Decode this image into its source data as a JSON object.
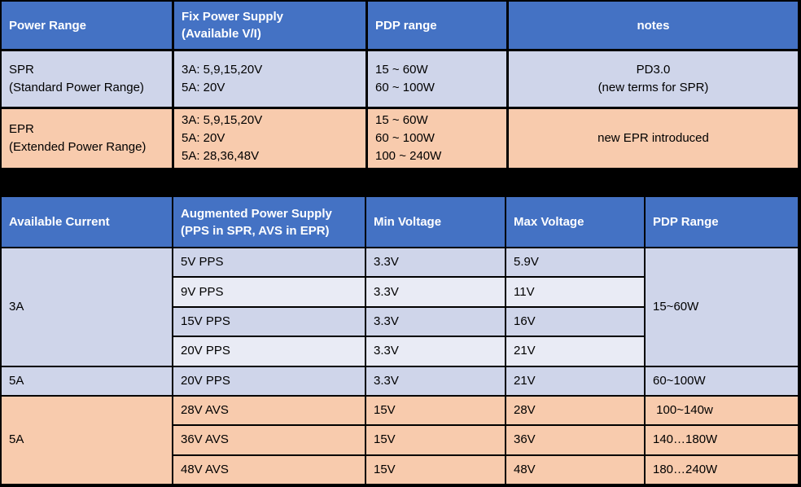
{
  "colors": {
    "page_background": "#000000",
    "header_bg": "#4472C4",
    "header_text": "#FFFFFF",
    "row_lavender": "#CFD5EA",
    "row_lavender_light": "#E9EBF5",
    "row_peach": "#F8CBAD",
    "grid_line": "#FFFFFF",
    "body_text": "#000000"
  },
  "power_range_table": {
    "headers": {
      "power_range": "Power Range",
      "fix_power_supply": "Fix Power Supply\n(Available V/I)",
      "pdp_range": "PDP range",
      "notes": "notes"
    },
    "spr_row": {
      "power_range": "SPR\n(Standard Power Range)",
      "fix_power_supply": "3A: 5,9,15,20V\n5A: 20V",
      "pdp_range": "15 ~ 60W\n60 ~ 100W",
      "notes": "PD3.0\n(new terms for SPR)"
    },
    "epr_row": {
      "power_range": "EPR\n(Extended Power Range)",
      "fix_power_supply": "3A: 5,9,15,20V\n5A: 20V\n5A: 28,36,48V",
      "pdp_range": "15 ~ 60W\n60 ~ 100W\n100 ~ 240W",
      "notes": "new EPR introduced"
    }
  },
  "augmented_table": {
    "headers": {
      "available_current": "Available Current",
      "augmented_power_supply": "Augmented Power Supply\n(PPS in SPR, AVS in EPR)",
      "min_voltage": "Min Voltage",
      "max_voltage": "Max Voltage",
      "pdp_range": "PDP Range"
    },
    "merged": {
      "current_3a": "3A",
      "pdp_3a": "15~60W",
      "current_5a_avs": "5A"
    },
    "rows": [
      {
        "supply": "5V PPS",
        "min": "3.3V",
        "max": "5.9V"
      },
      {
        "supply": "9V PPS",
        "min": "3.3V",
        "max": "11V"
      },
      {
        "supply": "15V PPS",
        "min": "3.3V",
        "max": "16V"
      },
      {
        "supply": "20V PPS",
        "min": "3.3V",
        "max": "21V"
      },
      {
        "current": "5A",
        "supply": "20V PPS",
        "min": "3.3V",
        "max": "21V",
        "pdp": "60~100W"
      },
      {
        "supply": "28V AVS",
        "min": "15V",
        "max": "28V",
        "pdp": " 100~140w"
      },
      {
        "supply": "36V AVS",
        "min": "15V",
        "max": "36V",
        "pdp": "140…180W"
      },
      {
        "supply": "48V AVS",
        "min": "15V",
        "max": "48V",
        "pdp": "180…240W"
      }
    ]
  }
}
